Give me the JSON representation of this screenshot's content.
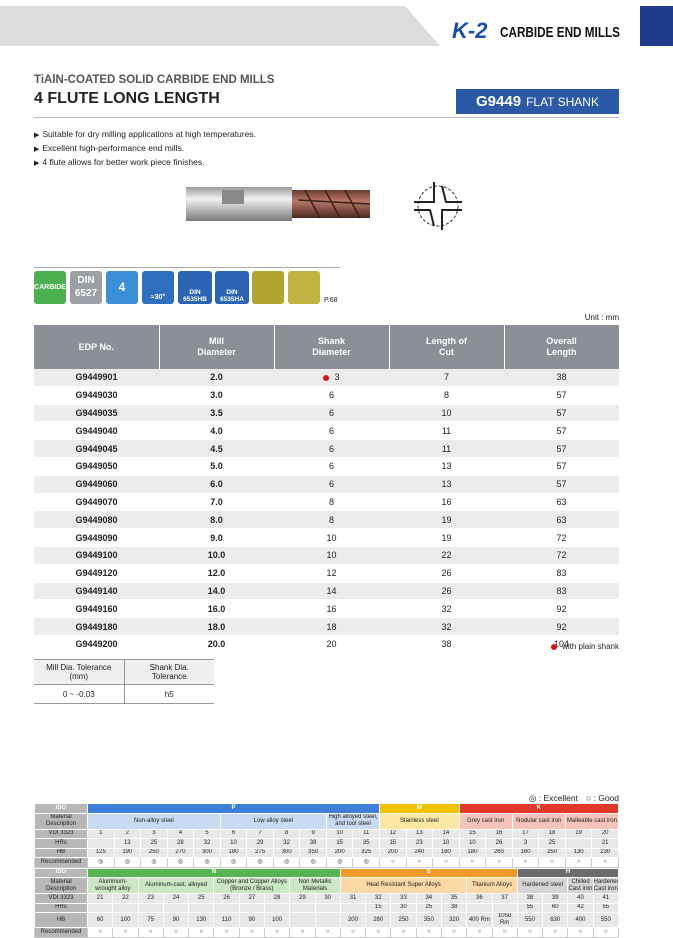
{
  "header": {
    "logo": "K-2",
    "brand": "CARBIDE END MILLS"
  },
  "title": {
    "subtitle": "TiAlN-COATED SOLID CARBIDE END MILLS",
    "main": "4 FLUTE LONG LENGTH",
    "code": "G9449",
    "shank": "FLAT SHANK"
  },
  "features": [
    "Suitable for dry milling applications at high temperatures.",
    "Excellent high-performance end mills.",
    "4 flute allows for better work piece finishes."
  ],
  "icons": {
    "carbide": "CARBIDE",
    "din": "DIN",
    "din_no": "6527",
    "flutes": "4",
    "helix": "≈30°",
    "din_hb": "DIN",
    "din_hb_no": "6535HB",
    "din_ha": "DIN",
    "din_ha_no": "6535HA",
    "page": "P.68"
  },
  "unit": "Unit : mm",
  "table": {
    "columns": [
      "EDP No.",
      "Mill Diameter",
      "Shank Diameter",
      "Length of Cut",
      "Overall Length"
    ],
    "plain_shank_rows": [
      0
    ],
    "rows": [
      [
        "G9449901",
        "2.0",
        3,
        7,
        38
      ],
      [
        "G9449030",
        "3.0",
        6,
        8,
        57
      ],
      [
        "G9449035",
        "3.5",
        6,
        10,
        57
      ],
      [
        "G9449040",
        "4.0",
        6,
        11,
        57
      ],
      [
        "G9449045",
        "4.5",
        6,
        11,
        57
      ],
      [
        "G9449050",
        "5.0",
        6,
        13,
        57
      ],
      [
        "G9449060",
        "6.0",
        6,
        13,
        57
      ],
      [
        "G9449070",
        "7.0",
        8,
        16,
        63
      ],
      [
        "G9449080",
        "8.0",
        8,
        19,
        63
      ],
      [
        "G9449090",
        "9.0",
        10,
        19,
        72
      ],
      [
        "G9449100",
        "10.0",
        10,
        22,
        72
      ],
      [
        "G9449120",
        "12.0",
        12,
        26,
        83
      ],
      [
        "G9449140",
        "14.0",
        14,
        26,
        83
      ],
      [
        "G9449160",
        "16.0",
        16,
        32,
        92
      ],
      [
        "G9449180",
        "18.0",
        18,
        32,
        92
      ],
      [
        "G9449200",
        "20.0",
        20,
        38,
        104
      ]
    ]
  },
  "note": "with plain shank",
  "tolerance": {
    "headers": [
      "Mill Dia. Tolerance (mm)",
      "Shank Dia. Tolerance"
    ],
    "values": [
      "0 ~ -0.03",
      "h5"
    ]
  },
  "materials": {
    "legend": [
      "◎ : Excellent",
      "○ : Good"
    ],
    "labels": [
      "ISO",
      "Material Description",
      "VDI 3323",
      "HRc",
      "HB",
      "Recommended"
    ],
    "blocks": [
      {
        "groups": [
          {
            "iso": "P",
            "color": "#3d7fd9",
            "light": "#c8dbf2",
            "materials": [
              {
                "name": "Non-alloy steel",
                "vdi": [
                  1,
                  2,
                  3,
                  4,
                  5
                ],
                "hrc": [
                  null,
                  13,
                  25,
                  28,
                  32
                ],
                "hb": [
                  125,
                  190,
                  250,
                  270,
                  300
                ],
                "rec": [
                  "◎",
                  "◎",
                  "◎",
                  "◎",
                  "◎"
                ]
              },
              {
                "name": "Low alloy steel",
                "vdi": [
                  6,
                  7,
                  8,
                  9
                ],
                "hrc": [
                  10,
                  29,
                  32,
                  38
                ],
                "hb": [
                  180,
                  275,
                  300,
                  350
                ],
                "rec": [
                  "◎",
                  "◎",
                  "◎",
                  "◎"
                ]
              },
              {
                "name": "High alloyed steel, and tool steel",
                "vdi": [
                  10,
                  11
                ],
                "hrc": [
                  15,
                  35
                ],
                "hb": [
                  200,
                  325
                ],
                "rec": [
                  "◎",
                  "◎"
                ]
              }
            ]
          },
          {
            "iso": "M",
            "color": "#f2c200",
            "light": "#fbe8a4",
            "materials": [
              {
                "name": "Stainless steel",
                "vdi": [
                  12,
                  13,
                  14
                ],
                "hrc": [
                  15,
                  23,
                  10
                ],
                "hb": [
                  200,
                  240,
                  180
                ],
                "rec": [
                  "○",
                  "○",
                  "○"
                ]
              }
            ]
          },
          {
            "iso": "K",
            "color": "#e0392b",
            "light": "#f5c3ba",
            "materials": [
              {
                "name": "Grey cast iron",
                "vdi": [
                  15,
                  16
                ],
                "hrc": [
                  10,
                  26
                ],
                "hb": [
                  180,
                  260
                ],
                "rec": [
                  "○",
                  "○"
                ]
              },
              {
                "name": "Nodular cast iron",
                "vdi": [
                  17,
                  18
                ],
                "hrc": [
                  3,
                  25
                ],
                "hb": [
                  160,
                  250
                ],
                "rec": [
                  "○",
                  "○"
                ]
              },
              {
                "name": "Malleable cast iron",
                "vdi": [
                  19,
                  20
                ],
                "hrc": [
                  null,
                  21
                ],
                "hb": [
                  130,
                  230
                ],
                "rec": [
                  "○",
                  "○"
                ]
              }
            ]
          }
        ]
      },
      {
        "groups": [
          {
            "iso": "N",
            "color": "#58b352",
            "light": "#cce7c4",
            "materials": [
              {
                "name": "Aluminum-wrought alloy",
                "vdi": [
                  21,
                  22
                ],
                "hrc": [
                  null,
                  null
                ],
                "hb": [
                  60,
                  100
                ],
                "rec": [
                  "○",
                  "○"
                ]
              },
              {
                "name": "Aluminum-cast, alloyed",
                "vdi": [
                  23,
                  24,
                  25
                ],
                "hrc": [
                  null,
                  null,
                  null
                ],
                "hb": [
                  75,
                  90,
                  130
                ],
                "rec": [
                  "○",
                  "○",
                  "○"
                ]
              },
              {
                "name": "Copper and Copper Alloys (Bronze / Brass)",
                "vdi": [
                  26,
                  27,
                  28
                ],
                "hrc": [
                  null,
                  null,
                  null
                ],
                "hb": [
                  110,
                  90,
                  100
                ],
                "rec": [
                  "○",
                  "○",
                  "○"
                ]
              },
              {
                "name": "Non Metallic Materials",
                "vdi": [
                  29,
                  30
                ],
                "hrc": [
                  null,
                  null
                ],
                "hb": [
                  null,
                  null
                ],
                "rec": [
                  "○",
                  "○"
                ]
              }
            ]
          },
          {
            "iso": "S",
            "color": "#f09a2a",
            "light": "#fbd8a6",
            "materials": [
              {
                "name": "Heat Resistant Super Alloys",
                "vdi": [
                  31,
                  32,
                  33,
                  34,
                  35
                ],
                "hrc": [
                  null,
                  15,
                  30,
                  25,
                  38
                ],
                "hb": [
                  200,
                  280,
                  250,
                  350,
                  320
                ],
                "rec": [
                  "○",
                  "○",
                  "○",
                  "○",
                  "○"
                ]
              },
              {
                "name": "Titanium Alloys",
                "vdi": [
                  36,
                  37
                ],
                "hrc": [
                  null,
                  null
                ],
                "hb": [
                  "400 Rm",
                  "1050 Rm"
                ],
                "rec": [
                  "○",
                  "○"
                ]
              }
            ]
          },
          {
            "iso": "H",
            "color": "#6c6c6c",
            "light": "#d5d5d5",
            "materials": [
              {
                "name": "Hardened steel",
                "vdi": [
                  38,
                  39
                ],
                "hrc": [
                  55,
                  60
                ],
                "hb": [
                  550,
                  630
                ],
                "rec": [
                  "○",
                  "○"
                ]
              },
              {
                "name": "Chilled Cast iron",
                "vdi": [
                  40
                ],
                "hrc": [
                  42
                ],
                "hb": [
                  400
                ],
                "rec": [
                  "○"
                ]
              },
              {
                "name": "Hardened Cast iron",
                "vdi": [
                  41
                ],
                "hrc": [
                  55
                ],
                "hb": [
                  550
                ],
                "rec": [
                  "○"
                ]
              }
            ]
          }
        ]
      }
    ]
  }
}
